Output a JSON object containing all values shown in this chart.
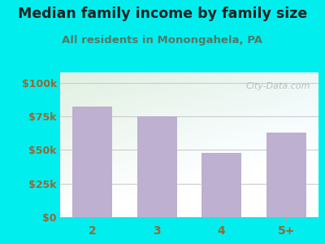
{
  "title": "Median family income by family size",
  "subtitle": "All residents in Monongahela, PA",
  "categories": [
    "2",
    "3",
    "4",
    "5+"
  ],
  "values": [
    82000,
    75000,
    48000,
    63000
  ],
  "bar_color": "#BDB0D0",
  "title_fontsize": 12.5,
  "subtitle_fontsize": 9.5,
  "yticks": [
    0,
    25000,
    50000,
    75000,
    100000
  ],
  "ytick_labels": [
    "$0",
    "$25k",
    "$50k",
    "$75k",
    "$100k"
  ],
  "ylim": [
    0,
    108000
  ],
  "background_outer": "#00EEEE",
  "bg_color_topleft": "#e8f2e0",
  "bg_color_topright": "#f5faf0",
  "bg_color_bottom": "#ffffff",
  "watermark": "City-Data.com",
  "tick_color": "#996633",
  "title_color": "#222222",
  "subtitle_color": "#557766",
  "grid_color": "#cccccc"
}
